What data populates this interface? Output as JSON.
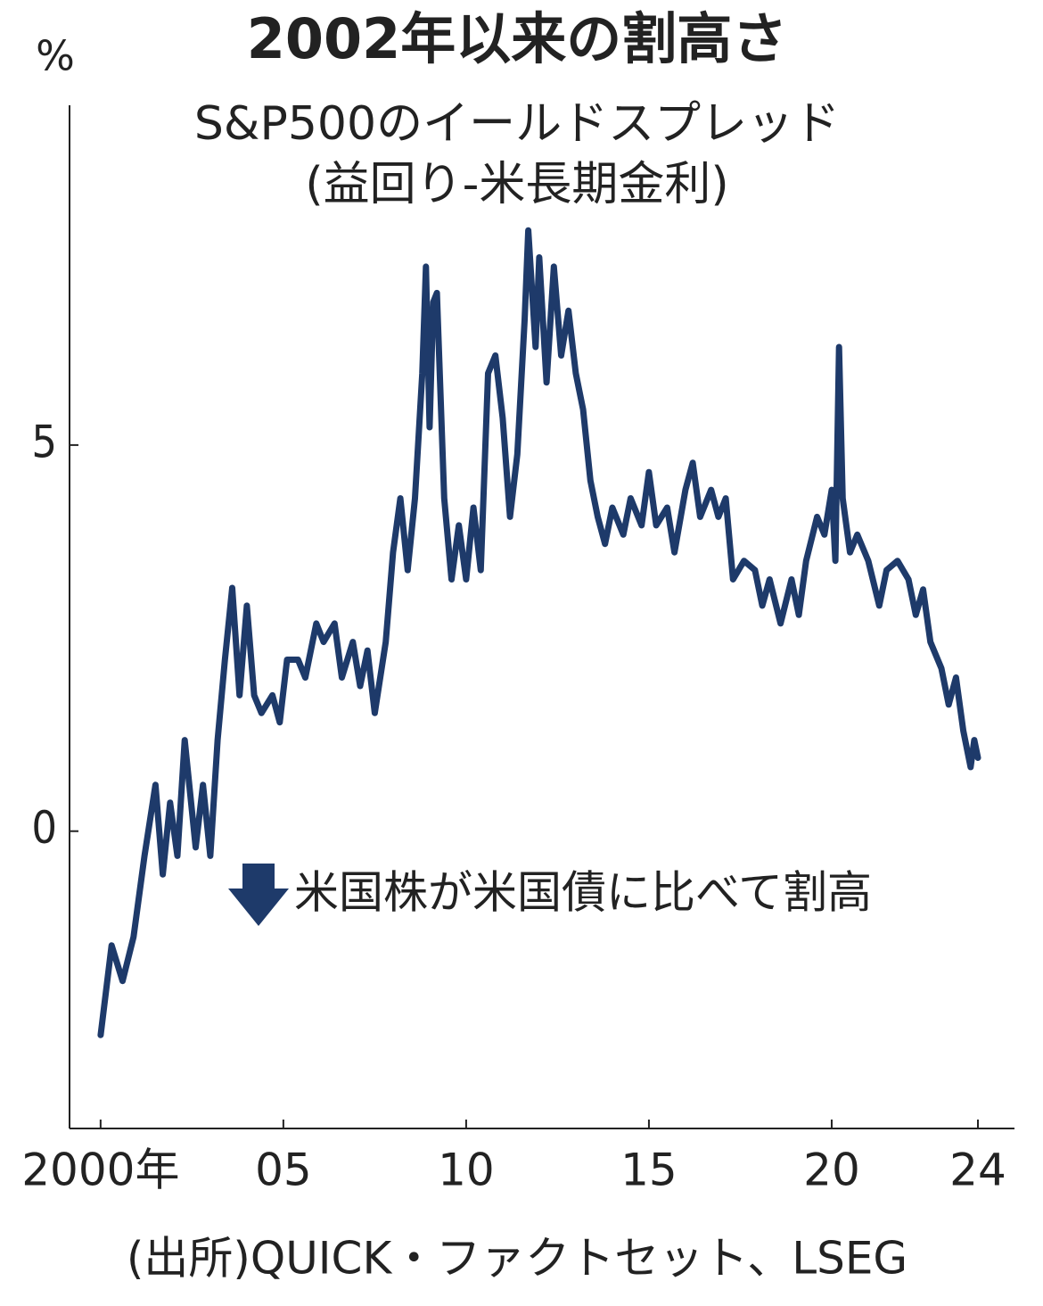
{
  "chart_data": {
    "type": "line",
    "title": "2002年以来の割高さ",
    "subtitle": "S&P500のイールドスプレッド",
    "subtitle2": "(益回り-米長期金利)",
    "y_unit": "%",
    "annotation": "米国株が米国債に比べて割高",
    "source": "(出所)QUICK・ファクトセット、LSEG",
    "color": "#1e3a6a",
    "x": [
      2000.0,
      2000.3,
      2000.6,
      2000.9,
      2001.2,
      2001.5,
      2001.7,
      2001.9,
      2002.1,
      2002.3,
      2002.6,
      2002.8,
      2003.0,
      2003.2,
      2003.4,
      2003.6,
      2003.8,
      2004.0,
      2004.2,
      2004.4,
      2004.7,
      2004.9,
      2005.1,
      2005.4,
      2005.6,
      2005.9,
      2006.1,
      2006.4,
      2006.6,
      2006.9,
      2007.1,
      2007.3,
      2007.5,
      2007.8,
      2008.0,
      2008.2,
      2008.4,
      2008.6,
      2008.8,
      2008.9,
      2009.0,
      2009.1,
      2009.2,
      2009.4,
      2009.6,
      2009.8,
      2010.0,
      2010.2,
      2010.4,
      2010.6,
      2010.8,
      2011.0,
      2011.2,
      2011.4,
      2011.6,
      2011.7,
      2011.9,
      2012.0,
      2012.2,
      2012.4,
      2012.6,
      2012.8,
      2013.0,
      2013.2,
      2013.4,
      2013.6,
      2013.8,
      2014.0,
      2014.3,
      2014.5,
      2014.8,
      2015.0,
      2015.2,
      2015.5,
      2015.7,
      2016.0,
      2016.2,
      2016.4,
      2016.7,
      2016.9,
      2017.1,
      2017.3,
      2017.6,
      2017.9,
      2018.1,
      2018.3,
      2018.6,
      2018.9,
      2019.1,
      2019.3,
      2019.6,
      2019.8,
      2020.0,
      2020.1,
      2020.2,
      2020.3,
      2020.5,
      2020.7,
      2021.0,
      2021.3,
      2021.5,
      2021.8,
      2022.1,
      2022.3,
      2022.5,
      2022.7,
      2023.0,
      2023.2,
      2023.4,
      2023.6,
      2023.8,
      2023.9,
      2024.0
    ],
    "values": [
      -2.64,
      -1.48,
      -1.94,
      -1.37,
      -0.32,
      0.6,
      -0.56,
      0.37,
      -0.32,
      1.18,
      -0.21,
      0.6,
      -0.32,
      1.18,
      2.22,
      3.15,
      1.76,
      2.92,
      1.76,
      1.53,
      1.76,
      1.41,
      2.22,
      2.22,
      1.99,
      2.69,
      2.45,
      2.69,
      1.99,
      2.45,
      1.88,
      2.34,
      1.53,
      2.45,
      3.61,
      4.31,
      3.38,
      4.31,
      5.93,
      7.31,
      5.23,
      6.85,
      6.97,
      4.31,
      3.26,
      3.96,
      3.26,
      4.19,
      3.38,
      5.93,
      6.16,
      5.35,
      4.07,
      4.88,
      6.62,
      7.78,
      6.27,
      7.43,
      5.81,
      7.31,
      6.16,
      6.74,
      5.93,
      5.46,
      4.54,
      4.07,
      3.72,
      4.19,
      3.84,
      4.31,
      3.96,
      4.65,
      3.96,
      4.19,
      3.61,
      4.42,
      4.77,
      4.07,
      4.42,
      4.07,
      4.31,
      3.26,
      3.5,
      3.38,
      2.92,
      3.26,
      2.69,
      3.26,
      2.8,
      3.5,
      4.07,
      3.84,
      4.42,
      3.5,
      6.27,
      4.31,
      3.61,
      3.84,
      3.5,
      2.92,
      3.38,
      3.5,
      3.26,
      2.8,
      3.13,
      2.45,
      2.11,
      1.64,
      1.99,
      1.3,
      0.83,
      1.18,
      0.95
    ],
    "xlim": [
      1999.15,
      2025.0
    ],
    "ylim": [
      -3.85,
      9.4
    ],
    "xticks": [
      {
        "value": 2000,
        "label": "2000年"
      },
      {
        "value": 2005,
        "label": "05"
      },
      {
        "value": 2010,
        "label": "10"
      },
      {
        "value": 2015,
        "label": "15"
      },
      {
        "value": 2020,
        "label": "20"
      },
      {
        "value": 2024,
        "label": "24"
      }
    ],
    "yticks": [
      0,
      5
    ]
  }
}
